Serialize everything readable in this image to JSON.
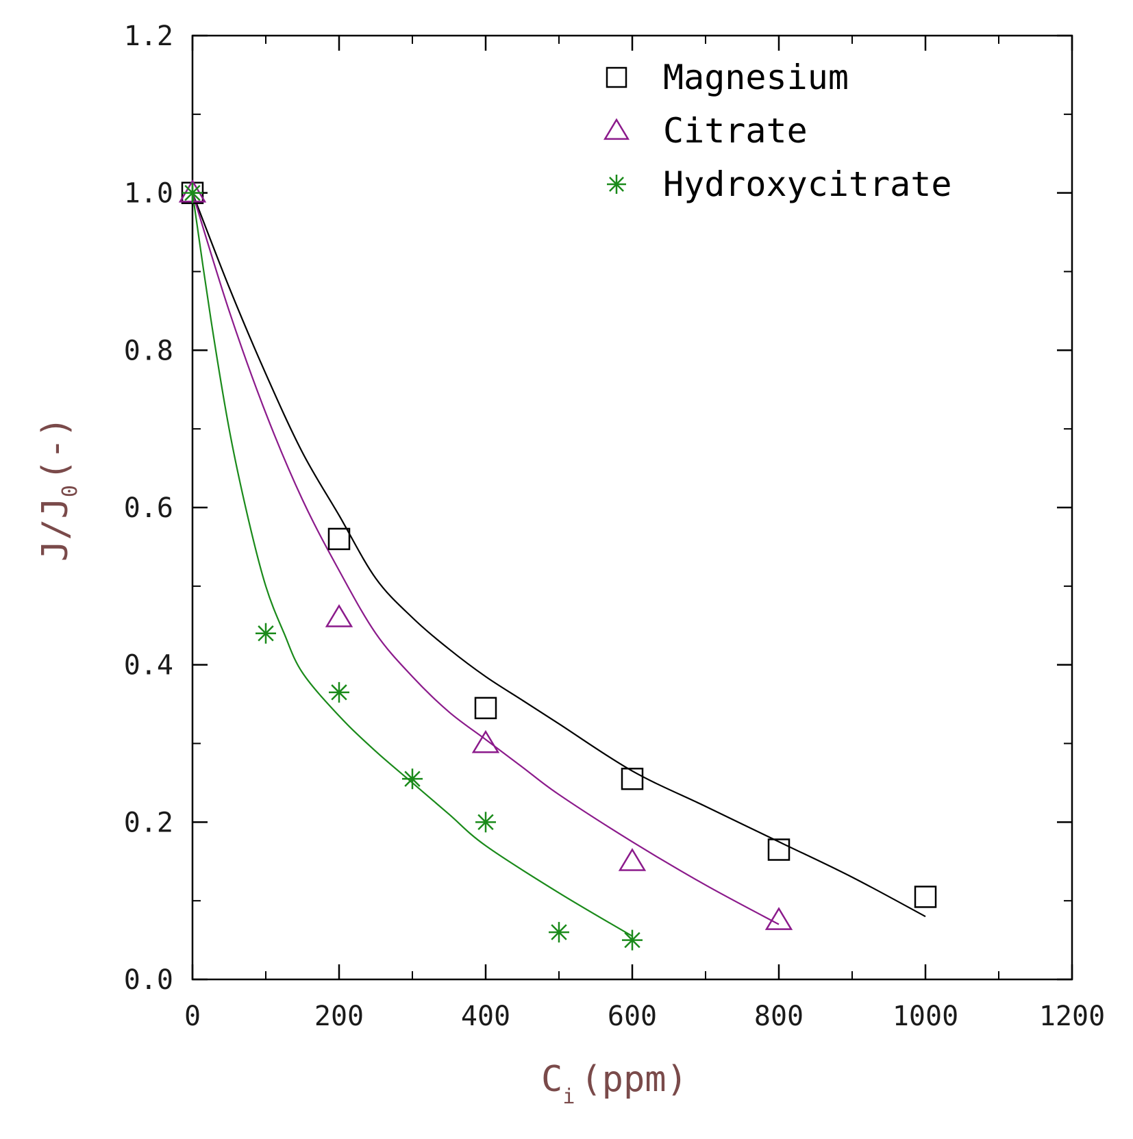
{
  "chart_data": {
    "type": "scatter",
    "xlabel": "C",
    "xlabel_subscript": "i",
    "xlabel_suffix": "(ppm)",
    "ylabel": "J/J",
    "ylabel_subscript": "0",
    "ylabel_suffix": "(-)",
    "xlim": [
      0,
      1200
    ],
    "ylim": [
      0,
      1.2
    ],
    "x_ticks": [
      0,
      200,
      400,
      600,
      800,
      1000,
      1200
    ],
    "x_tick_labels": [
      "0",
      "200",
      "400",
      "600",
      "800",
      "1000",
      "1200"
    ],
    "x_minor_ticks": [
      100,
      300,
      500,
      700,
      900,
      1100
    ],
    "y_ticks": [
      0,
      0.2,
      0.4,
      0.6,
      0.8,
      1.0,
      1.2
    ],
    "y_tick_labels": [
      "0.0",
      "0.2",
      "0.4",
      "0.6",
      "0.8",
      "1.0",
      "1.2"
    ],
    "y_minor_ticks": [
      0.1,
      0.3,
      0.5,
      0.7,
      0.9,
      1.1
    ],
    "grid": false,
    "legend_position": "top-right",
    "series": [
      {
        "name": "Magnesium",
        "marker": "square",
        "color": "#000000",
        "x": [
          0,
          200,
          400,
          600,
          800,
          1000
        ],
        "y": [
          1.0,
          0.56,
          0.345,
          0.255,
          0.165,
          0.105
        ],
        "fit_x": [
          0,
          50,
          100,
          150,
          200,
          250,
          300,
          350,
          400,
          450,
          500,
          600,
          700,
          800,
          900,
          1000
        ],
        "fit_y": [
          1.0,
          0.88,
          0.77,
          0.67,
          0.59,
          0.51,
          0.46,
          0.42,
          0.385,
          0.355,
          0.325,
          0.265,
          0.22,
          0.175,
          0.13,
          0.08
        ]
      },
      {
        "name": "Citrate",
        "marker": "triangle",
        "color": "#8b1a8b",
        "x": [
          0,
          200,
          400,
          600,
          800
        ],
        "y": [
          1.0,
          0.46,
          0.3,
          0.15,
          0.075
        ],
        "fit_x": [
          0,
          50,
          100,
          150,
          200,
          250,
          300,
          350,
          400,
          450,
          500,
          600,
          700,
          800
        ],
        "fit_y": [
          1.0,
          0.85,
          0.72,
          0.61,
          0.52,
          0.44,
          0.385,
          0.34,
          0.305,
          0.27,
          0.235,
          0.175,
          0.12,
          0.07
        ]
      },
      {
        "name": "Hydroxycitrate",
        "marker": "star",
        "color": "#1a8a1a",
        "x": [
          0,
          100,
          200,
          300,
          400,
          500,
          600
        ],
        "y": [
          1.0,
          0.44,
          0.365,
          0.255,
          0.2,
          0.06,
          0.05
        ],
        "fit_x": [
          0,
          25,
          50,
          75,
          100,
          125,
          150,
          200,
          250,
          300,
          350,
          400,
          500,
          600
        ],
        "fit_y": [
          1.0,
          0.84,
          0.7,
          0.59,
          0.5,
          0.44,
          0.39,
          0.335,
          0.29,
          0.25,
          0.21,
          0.17,
          0.11,
          0.055
        ]
      }
    ]
  }
}
